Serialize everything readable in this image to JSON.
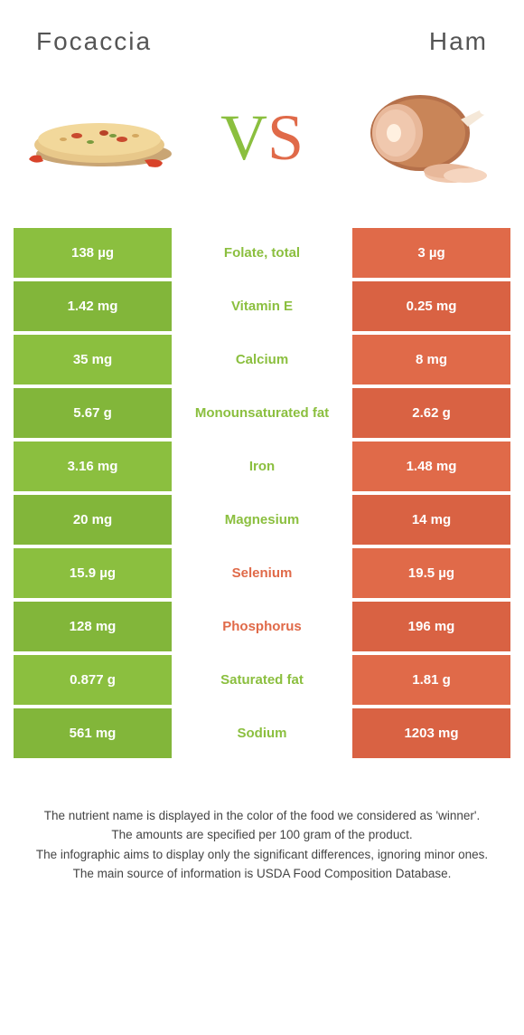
{
  "colors": {
    "green_bar": "#8bbf3f",
    "green_bar_alt": "#82b63a",
    "orange_bar": "#e06a49",
    "orange_bar_alt": "#d96243",
    "green_text": "#8bbf3f",
    "orange_text": "#e06a49",
    "title_text": "#555555",
    "footer_text": "#444444",
    "white": "#ffffff"
  },
  "header": {
    "left": "Focaccia",
    "right": "Ham"
  },
  "vs": {
    "v": "V",
    "s": "S"
  },
  "rows": [
    {
      "left": "138 µg",
      "label": "Folate, total",
      "right": "3 µg",
      "winner": "left"
    },
    {
      "left": "1.42 mg",
      "label": "Vitamin E",
      "right": "0.25 mg",
      "winner": "left"
    },
    {
      "left": "35 mg",
      "label": "Calcium",
      "right": "8 mg",
      "winner": "left"
    },
    {
      "left": "5.67 g",
      "label": "Monounsaturated fat",
      "right": "2.62 g",
      "winner": "left"
    },
    {
      "left": "3.16 mg",
      "label": "Iron",
      "right": "1.48 mg",
      "winner": "left"
    },
    {
      "left": "20 mg",
      "label": "Magnesium",
      "right": "14 mg",
      "winner": "left"
    },
    {
      "left": "15.9 µg",
      "label": "Selenium",
      "right": "19.5 µg",
      "winner": "right"
    },
    {
      "left": "128 mg",
      "label": "Phosphorus",
      "right": "196 mg",
      "winner": "right"
    },
    {
      "left": "0.877 g",
      "label": "Saturated fat",
      "right": "1.81 g",
      "winner": "left"
    },
    {
      "left": "561 mg",
      "label": "Sodium",
      "right": "1203 mg",
      "winner": "left"
    }
  ],
  "footer": {
    "line1": "The nutrient name is displayed in the color of the food we considered as 'winner'.",
    "line2": "The amounts are specified per 100 gram of the product.",
    "line3": "The infographic aims to display only the significant differences, ignoring minor ones.",
    "line4": "The main source of information is USDA Food Composition Database."
  }
}
